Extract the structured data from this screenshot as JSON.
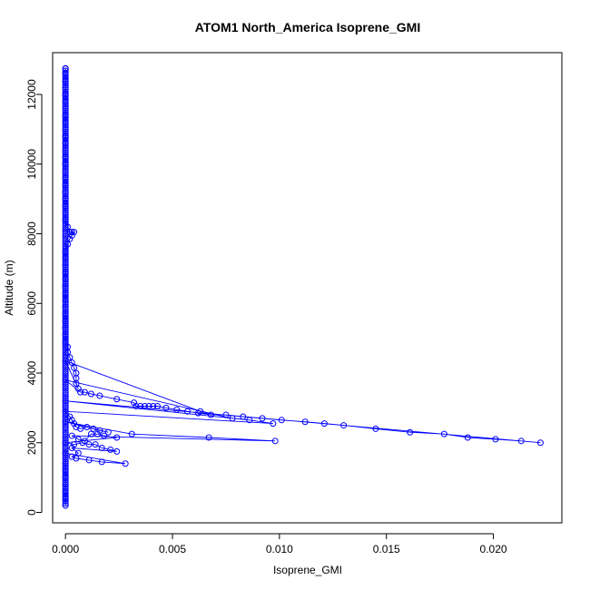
{
  "chart_data": {
    "type": "scatter",
    "title": "ATOM1 North_America Isoprene_GMI",
    "xlabel": "Isoprene_GMI",
    "ylabel": "Altitude (m)",
    "xlim": [
      -0.0006,
      0.0232
    ],
    "ylim": [
      -300,
      13200
    ],
    "xticks": [
      0.0,
      0.005,
      0.01,
      0.015,
      0.02
    ],
    "xtick_labels": [
      "0.000",
      "0.005",
      "0.010",
      "0.015",
      "0.020"
    ],
    "yticks": [
      0,
      2000,
      4000,
      6000,
      8000,
      10000,
      12000
    ],
    "ytick_labels": [
      "0",
      "2000",
      "4000",
      "6000",
      "8000",
      "10000",
      "12000"
    ],
    "grid": false,
    "series_color": "#0000ff",
    "points": [
      [
        0.0,
        12750
      ],
      [
        0.0,
        12600
      ],
      [
        0.0,
        12400
      ],
      [
        0.0,
        12200
      ],
      [
        0.0,
        12000
      ],
      [
        0.0,
        11800
      ],
      [
        0.0,
        11600
      ],
      [
        0.0,
        11400
      ],
      [
        0.0,
        11200
      ],
      [
        0.0,
        11000
      ],
      [
        0.0,
        10800
      ],
      [
        0.0,
        10600
      ],
      [
        0.0,
        10400
      ],
      [
        0.0,
        10200
      ],
      [
        0.0,
        10000
      ],
      [
        0.0,
        9800
      ],
      [
        0.0,
        9600
      ],
      [
        0.0,
        9400
      ],
      [
        0.0,
        9200
      ],
      [
        0.0,
        9000
      ],
      [
        0.0,
        8800
      ],
      [
        0.0,
        8600
      ],
      [
        0.0,
        8400
      ],
      [
        0.0001,
        8200
      ],
      [
        0.0002,
        8050
      ],
      [
        0.0003,
        8050
      ],
      [
        0.0004,
        8050
      ],
      [
        0.0003,
        7950
      ],
      [
        0.0002,
        7850
      ],
      [
        0.0001,
        7700
      ],
      [
        0.0,
        7500
      ],
      [
        0.0,
        7300
      ],
      [
        0.0,
        7100
      ],
      [
        0.0,
        6900
      ],
      [
        0.0,
        6700
      ],
      [
        0.0,
        6500
      ],
      [
        0.0,
        6300
      ],
      [
        0.0,
        6100
      ],
      [
        0.0,
        5900
      ],
      [
        0.0,
        5700
      ],
      [
        0.0,
        5500
      ],
      [
        0.0,
        5300
      ],
      [
        0.0,
        5100
      ],
      [
        0.0,
        4900
      ],
      [
        0.0001,
        4750
      ],
      [
        0.0001,
        4600
      ],
      [
        0.0002,
        4450
      ],
      [
        0.0003,
        4300
      ],
      [
        0.0004,
        4150
      ],
      [
        0.0005,
        4000
      ],
      [
        0.0005,
        3850
      ],
      [
        0.0005,
        3700
      ],
      [
        0.0006,
        3550
      ],
      [
        0.0,
        4350
      ],
      [
        0.0063,
        2900
      ],
      [
        0.0078,
        2700
      ],
      [
        0.0,
        3800
      ],
      [
        0.0007,
        3450
      ],
      [
        0.0009,
        3450
      ],
      [
        0.0012,
        3400
      ],
      [
        0.0016,
        3350
      ],
      [
        0.0024,
        3250
      ],
      [
        0.0032,
        3150
      ],
      [
        0.0033,
        3050
      ],
      [
        0.0035,
        3050
      ],
      [
        0.0037,
        3050
      ],
      [
        0.0039,
        3050
      ],
      [
        0.0041,
        3050
      ],
      [
        0.0043,
        3050
      ],
      [
        0.0047,
        3000
      ],
      [
        0.0052,
        2950
      ],
      [
        0.0057,
        2900
      ],
      [
        0.0062,
        2850
      ],
      [
        0.0068,
        2800
      ],
      [
        0.0075,
        2800
      ],
      [
        0.0083,
        2750
      ],
      [
        0.0092,
        2700
      ],
      [
        0.0101,
        2650
      ],
      [
        0.0112,
        2600
      ],
      [
        0.0121,
        2550
      ],
      [
        0.013,
        2500
      ],
      [
        0.0145,
        2400
      ],
      [
        0.0161,
        2300
      ],
      [
        0.0177,
        2250
      ],
      [
        0.0188,
        2150
      ],
      [
        0.0201,
        2100
      ],
      [
        0.0213,
        2050
      ],
      [
        0.0222,
        2000
      ],
      [
        0.0,
        3200
      ],
      [
        0.0086,
        2650
      ],
      [
        0.0097,
        2550
      ],
      [
        0.0,
        2900
      ],
      [
        0.0002,
        2750
      ],
      [
        0.0003,
        2650
      ],
      [
        0.0004,
        2550
      ],
      [
        0.0005,
        2450
      ],
      [
        0.0007,
        2400
      ],
      [
        0.001,
        2450
      ],
      [
        0.0013,
        2400
      ],
      [
        0.0016,
        2350
      ],
      [
        0.002,
        2300
      ],
      [
        0.0,
        2600
      ],
      [
        0.0031,
        2250
      ],
      [
        0.0067,
        2150
      ],
      [
        0.0098,
        2050
      ],
      [
        0.0003,
        2200
      ],
      [
        0.0006,
        2100
      ],
      [
        0.0009,
        2050
      ],
      [
        0.0012,
        2250
      ],
      [
        0.0015,
        2250
      ],
      [
        0.0018,
        2200
      ],
      [
        0.0024,
        2150
      ],
      [
        0.0,
        2000
      ],
      [
        0.0004,
        1950
      ],
      [
        0.0008,
        2000
      ],
      [
        0.0011,
        1950
      ],
      [
        0.0014,
        1950
      ],
      [
        0.0017,
        1850
      ],
      [
        0.0021,
        1800
      ],
      [
        0.0024,
        1750
      ],
      [
        0.0003,
        1850
      ],
      [
        0.0006,
        1700
      ],
      [
        0.0003,
        1600
      ],
      [
        0.0005,
        1550
      ],
      [
        0.0011,
        1500
      ],
      [
        0.0017,
        1450
      ],
      [
        0.0028,
        1400
      ],
      [
        0.0,
        1700
      ],
      [
        0.0,
        1400
      ],
      [
        0.0,
        1200
      ],
      [
        0.0,
        1000
      ],
      [
        0.0,
        800
      ],
      [
        0.0,
        600
      ],
      [
        0.0,
        400
      ],
      [
        0.0,
        200
      ]
    ]
  }
}
